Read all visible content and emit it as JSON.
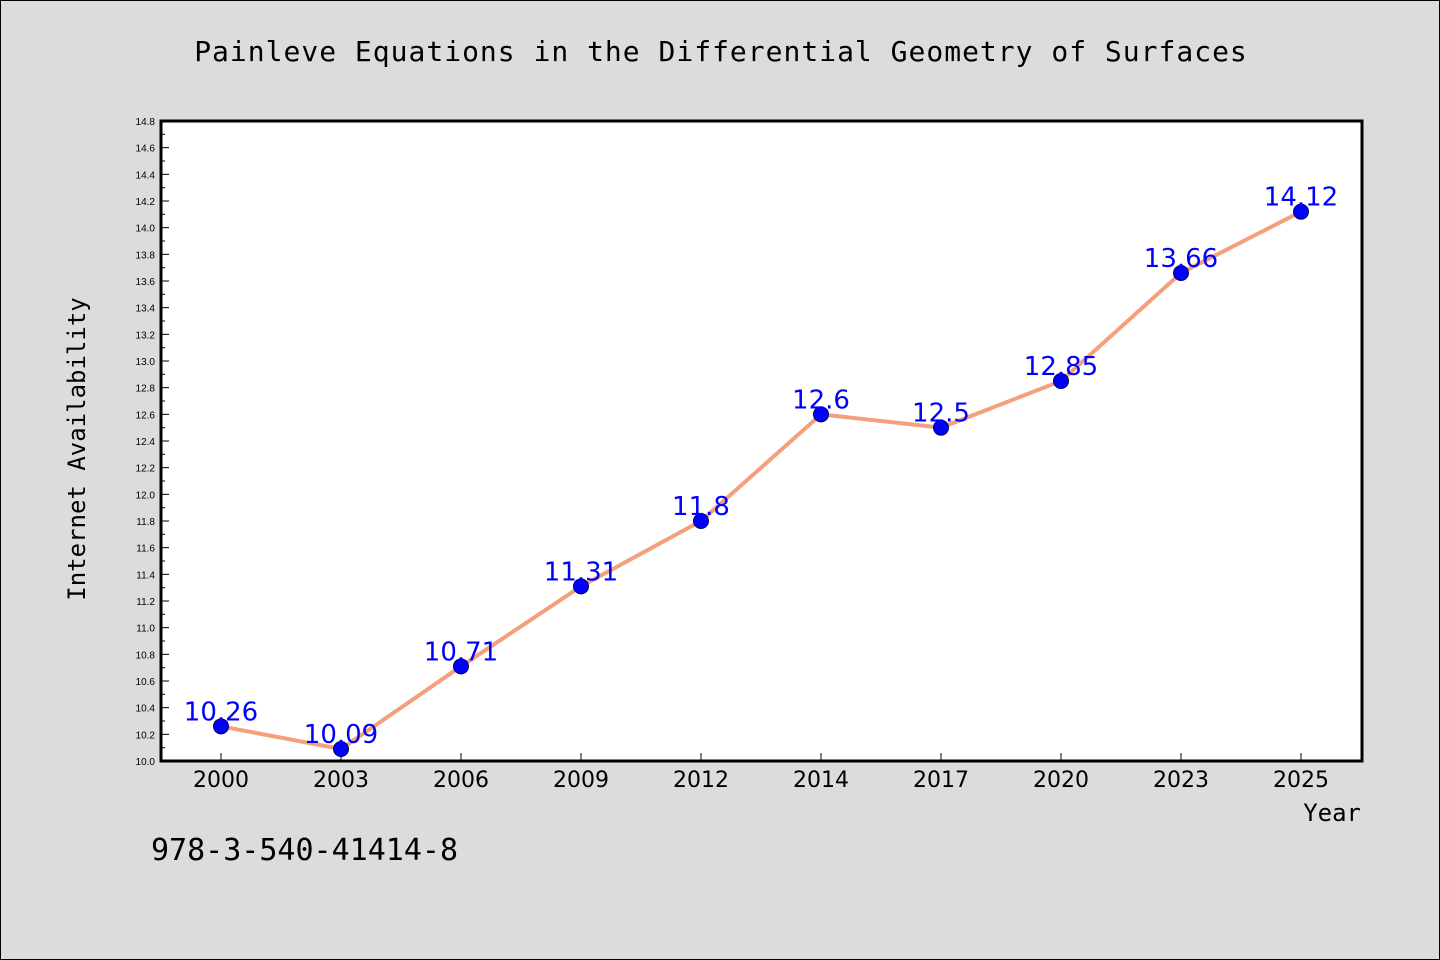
{
  "chart_data": {
    "type": "line",
    "title": "Painleve Equations in the Differential Geometry of Surfaces",
    "xlabel": "Year",
    "ylabel": "Internet Availability",
    "categories": [
      "2000",
      "2003",
      "2006",
      "2009",
      "2012",
      "2014",
      "2017",
      "2020",
      "2023",
      "2025"
    ],
    "series": [
      {
        "values": [
          10.26,
          10.09,
          10.71,
          11.31,
          11.8,
          12.6,
          12.5,
          12.85,
          13.66,
          14.12
        ],
        "labels": [
          "10.26",
          "10.09",
          "10.71",
          "11.31",
          "11.8",
          "12.6",
          "12.5",
          "12.85",
          "13.66",
          "14.12"
        ]
      }
    ],
    "ylim": [
      10.0,
      14.8
    ],
    "yticks": [
      "10.0",
      "10.2",
      "10.4",
      "10.6",
      "10.8",
      "11.0",
      "11.2",
      "11.4",
      "11.6",
      "11.8",
      "12.0",
      "12.2",
      "12.4",
      "12.6",
      "12.8",
      "13.0",
      "13.2",
      "13.4",
      "13.6",
      "13.8",
      "14.0",
      "14.2",
      "14.4",
      "14.6",
      "14.8"
    ],
    "grid": false,
    "line_color": "#f4a07c",
    "marker_color": "#0000ff",
    "label_color": "#0000ff"
  },
  "footer": {
    "code": "978-3-540-41414-8"
  }
}
